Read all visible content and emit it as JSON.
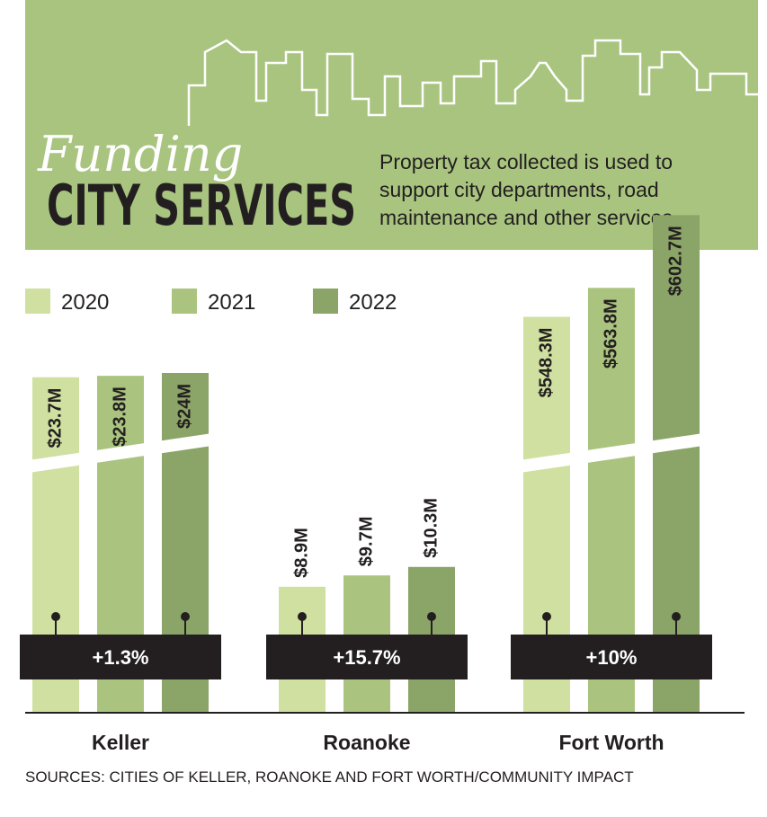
{
  "chart_data": {
    "type": "bar",
    "kicker": "Funding",
    "title": "CITY SERVICES",
    "description": [
      "Property tax collected is used to",
      "support city departments, road",
      "maintenance and other services."
    ],
    "categories": [
      "Keller",
      "Roanoke",
      "Fort Worth"
    ],
    "series": [
      {
        "name": "2020",
        "color": "#cfe0a0",
        "values": [
          23.7,
          8.9,
          548.3
        ],
        "value_labels": [
          "$23.7M",
          "$8.9M",
          "$548.3M"
        ]
      },
      {
        "name": "2021",
        "color": "#aac47f",
        "values": [
          23.8,
          9.7,
          563.8
        ],
        "value_labels": [
          "$23.8M",
          "$9.7M",
          "$563.8M"
        ]
      },
      {
        "name": "2022",
        "color": "#8ba467",
        "values": [
          24,
          10.3,
          602.7
        ],
        "value_labels": [
          "$24M",
          "$10.3M",
          "$602.7M"
        ]
      }
    ],
    "changes": [
      "+1.3%",
      "+15.7%",
      "+10%"
    ],
    "source": "SOURCES: CITIES OF KELLER, ROANOKE AND FORT WORTH/COMMUNITY IMPACT"
  }
}
